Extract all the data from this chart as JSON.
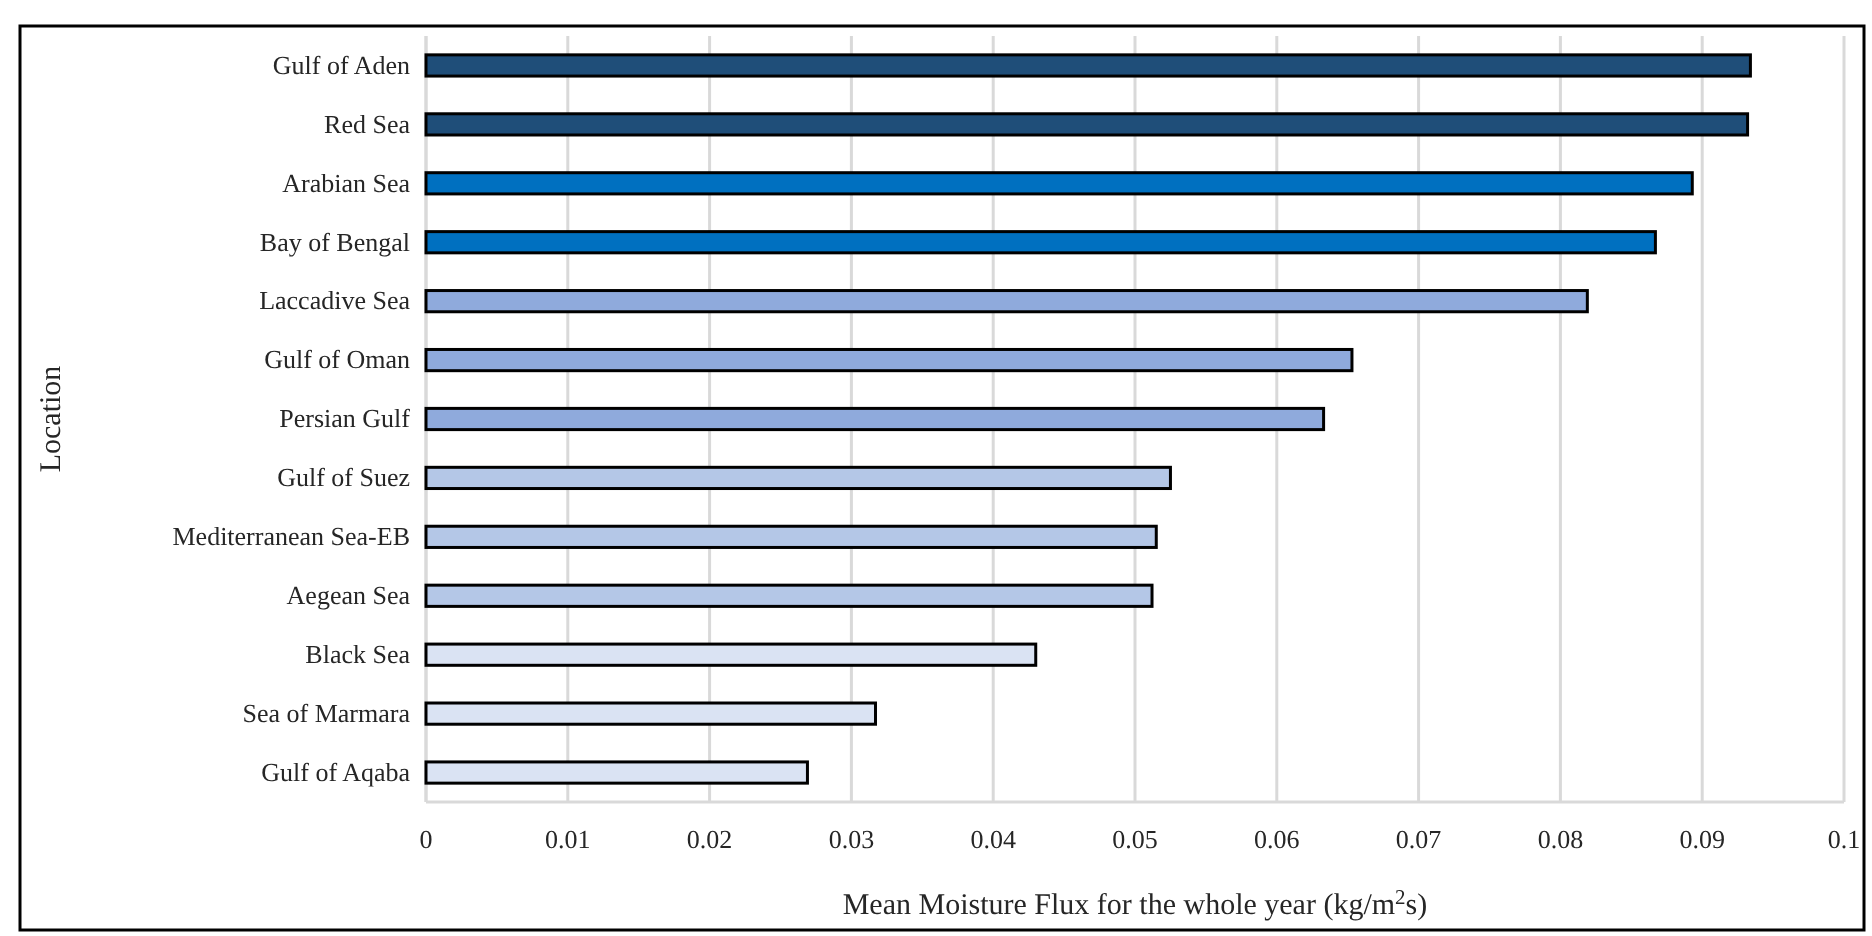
{
  "chart_data": {
    "type": "bar",
    "orientation": "horizontal",
    "xlabel": "Mean Moisture Flux for the whole year (kg/m$^{2}$s)",
    "ylabel": "Location",
    "categories": [
      "Gulf of Aden",
      "Red Sea",
      "Arabian Sea",
      "Bay of Bengal",
      "Laccadive Sea",
      "Gulf of Oman",
      "Persian Gulf",
      "Gulf of Suez",
      "Mediterranean Sea-EB",
      "Aegean Sea",
      "Black Sea",
      "Sea of Marmara",
      "Gulf of Aqaba"
    ],
    "values": [
      0.0934,
      0.0932,
      0.0893,
      0.0867,
      0.0819,
      0.0653,
      0.0633,
      0.0525,
      0.0515,
      0.0512,
      0.043,
      0.0317,
      0.0269
    ],
    "colors": [
      "#1f4e79",
      "#1f4e79",
      "#0070c0",
      "#0070c0",
      "#8faadc",
      "#8faadc",
      "#8faadc",
      "#b4c7e7",
      "#b4c7e7",
      "#b4c7e7",
      "#dae3f3",
      "#dae3f3",
      "#dae3f3"
    ],
    "xlim": [
      0,
      0.1
    ],
    "xticks": [
      0,
      0.01,
      0.02,
      0.03,
      0.04,
      0.05,
      0.06,
      0.07,
      0.08,
      0.09,
      0.1
    ],
    "grid": "x"
  }
}
